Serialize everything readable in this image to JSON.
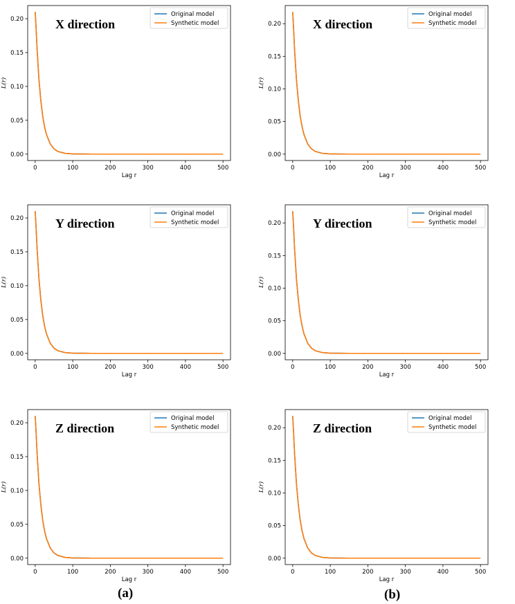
{
  "chart_data": [
    {
      "type": "line",
      "panel": "a",
      "direction_label": "X direction",
      "xlabel": "Lag r",
      "ylabel": "L(r)",
      "xlim": [
        0,
        500
      ],
      "ylim": [
        0,
        0.21
      ],
      "xticks": [
        "0",
        "100",
        "200",
        "300",
        "400",
        "500"
      ],
      "yticks": [
        "0.00",
        "0.05",
        "0.10",
        "0.15",
        "0.20"
      ],
      "grid": false,
      "legend_position": "top-right",
      "series": [
        {
          "name": "Original model",
          "color": "#1f77b4",
          "x": [
            0,
            2,
            5,
            10,
            15,
            20,
            25,
            30,
            40,
            50,
            60,
            80,
            100,
            150,
            200,
            300,
            400,
            500
          ],
          "y": [
            0.21,
            0.19,
            0.155,
            0.11,
            0.079,
            0.056,
            0.04,
            0.029,
            0.015,
            0.0078,
            0.004,
            0.0011,
            0.0003,
            0.0,
            0.0,
            0.0,
            0.0,
            0.0
          ]
        },
        {
          "name": "Synthetic model",
          "color": "#ff7f0e",
          "x": [
            0,
            2,
            5,
            10,
            15,
            20,
            25,
            30,
            40,
            50,
            60,
            80,
            100,
            150,
            200,
            300,
            400,
            500
          ],
          "y": [
            0.21,
            0.19,
            0.155,
            0.11,
            0.079,
            0.056,
            0.04,
            0.029,
            0.015,
            0.0078,
            0.004,
            0.0011,
            0.0003,
            0.0,
            0.0,
            0.0,
            0.0,
            0.0
          ]
        }
      ]
    },
    {
      "type": "line",
      "panel": "b",
      "direction_label": "X direction",
      "xlabel": "Lag r",
      "ylabel": "L(r)",
      "xlim": [
        0,
        500
      ],
      "ylim": [
        0,
        0.218
      ],
      "xticks": [
        "0",
        "100",
        "200",
        "300",
        "400",
        "500"
      ],
      "yticks": [
        "0.00",
        "0.05",
        "0.10",
        "0.15",
        "0.20"
      ],
      "grid": false,
      "legend_position": "top-right",
      "series": [
        {
          "name": "Original model",
          "color": "#1f77b4",
          "x": [
            0,
            2,
            5,
            10,
            15,
            20,
            25,
            30,
            40,
            50,
            60,
            80,
            100,
            150,
            200,
            300,
            400,
            500
          ],
          "y": [
            0.218,
            0.197,
            0.16,
            0.114,
            0.082,
            0.058,
            0.042,
            0.03,
            0.0155,
            0.008,
            0.0041,
            0.0011,
            0.0003,
            0.0,
            0.0,
            0.0,
            0.0,
            0.0
          ]
        },
        {
          "name": "Synthetic model",
          "color": "#ff7f0e",
          "x": [
            0,
            2,
            5,
            10,
            15,
            20,
            25,
            30,
            40,
            50,
            60,
            80,
            100,
            150,
            200,
            300,
            400,
            500
          ],
          "y": [
            0.218,
            0.197,
            0.16,
            0.114,
            0.082,
            0.058,
            0.042,
            0.03,
            0.0155,
            0.008,
            0.0041,
            0.0011,
            0.0003,
            0.0,
            0.0,
            0.0,
            0.0,
            0.0
          ]
        }
      ]
    },
    {
      "type": "line",
      "panel": "a",
      "direction_label": "Y direction",
      "xlabel": "Lag r",
      "ylabel": "L(r)",
      "xlim": [
        0,
        500
      ],
      "ylim": [
        0,
        0.21
      ],
      "xticks": [
        "0",
        "100",
        "200",
        "300",
        "400",
        "500"
      ],
      "yticks": [
        "0.00",
        "0.05",
        "0.10",
        "0.15",
        "0.20"
      ],
      "grid": false,
      "legend_position": "top-right",
      "series": [
        {
          "name": "Original model",
          "color": "#1f77b4",
          "x": [
            0,
            2,
            5,
            10,
            15,
            20,
            25,
            30,
            40,
            50,
            60,
            80,
            100,
            150,
            200,
            300,
            400,
            500
          ],
          "y": [
            0.21,
            0.19,
            0.155,
            0.11,
            0.079,
            0.056,
            0.04,
            0.029,
            0.015,
            0.0078,
            0.004,
            0.0011,
            0.0003,
            0.0,
            0.0,
            0.0,
            0.0,
            0.0
          ]
        },
        {
          "name": "Synthetic model",
          "color": "#ff7f0e",
          "x": [
            0,
            2,
            5,
            10,
            15,
            20,
            25,
            30,
            40,
            50,
            60,
            80,
            100,
            150,
            200,
            300,
            400,
            500
          ],
          "y": [
            0.21,
            0.19,
            0.155,
            0.11,
            0.079,
            0.056,
            0.04,
            0.029,
            0.015,
            0.0078,
            0.004,
            0.0011,
            0.0003,
            0.0,
            0.0,
            0.0,
            0.0,
            0.0
          ]
        }
      ]
    },
    {
      "type": "line",
      "panel": "b",
      "direction_label": "Y direction",
      "xlabel": "Lag r",
      "ylabel": "L(r)",
      "xlim": [
        0,
        500
      ],
      "ylim": [
        0,
        0.218
      ],
      "xticks": [
        "0",
        "100",
        "200",
        "300",
        "400",
        "500"
      ],
      "yticks": [
        "0.00",
        "0.05",
        "0.10",
        "0.15",
        "0.20"
      ],
      "grid": false,
      "legend_position": "top-right",
      "series": [
        {
          "name": "Original model",
          "color": "#1f77b4",
          "x": [
            0,
            2,
            5,
            10,
            15,
            20,
            25,
            30,
            40,
            50,
            60,
            80,
            100,
            150,
            200,
            300,
            400,
            500
          ],
          "y": [
            0.218,
            0.197,
            0.16,
            0.114,
            0.082,
            0.058,
            0.042,
            0.03,
            0.0155,
            0.008,
            0.0041,
            0.0011,
            0.0003,
            0.0,
            0.0,
            0.0,
            0.0,
            0.0
          ]
        },
        {
          "name": "Synthetic model",
          "color": "#ff7f0e",
          "x": [
            0,
            2,
            5,
            10,
            15,
            20,
            25,
            30,
            40,
            50,
            60,
            80,
            100,
            150,
            200,
            300,
            400,
            500
          ],
          "y": [
            0.218,
            0.197,
            0.16,
            0.114,
            0.082,
            0.058,
            0.042,
            0.03,
            0.0155,
            0.008,
            0.0041,
            0.0011,
            0.0003,
            0.0,
            0.0,
            0.0,
            0.0,
            0.0
          ]
        }
      ]
    },
    {
      "type": "line",
      "panel": "a",
      "direction_label": "Z direction",
      "xlabel": "Lag r",
      "ylabel": "L(r)",
      "xlim": [
        0,
        500
      ],
      "ylim": [
        0,
        0.21
      ],
      "xticks": [
        "0",
        "100",
        "200",
        "300",
        "400",
        "500"
      ],
      "yticks": [
        "0.00",
        "0.05",
        "0.10",
        "0.15",
        "0.20"
      ],
      "grid": false,
      "legend_position": "top-right",
      "series": [
        {
          "name": "Original model",
          "color": "#1f77b4",
          "x": [
            0,
            2,
            5,
            10,
            15,
            20,
            25,
            30,
            40,
            50,
            60,
            80,
            100,
            150,
            200,
            300,
            400,
            500
          ],
          "y": [
            0.21,
            0.19,
            0.155,
            0.11,
            0.079,
            0.056,
            0.04,
            0.029,
            0.015,
            0.0078,
            0.004,
            0.0011,
            0.0003,
            0.0,
            0.0,
            0.0,
            0.0,
            0.0
          ]
        },
        {
          "name": "Synthetic model",
          "color": "#ff7f0e",
          "x": [
            0,
            2,
            5,
            10,
            15,
            20,
            25,
            30,
            40,
            50,
            60,
            80,
            100,
            150,
            200,
            300,
            400,
            500
          ],
          "y": [
            0.21,
            0.19,
            0.155,
            0.11,
            0.079,
            0.056,
            0.04,
            0.029,
            0.015,
            0.0078,
            0.004,
            0.0011,
            0.0003,
            0.0,
            0.0,
            0.0,
            0.0,
            0.0
          ]
        }
      ]
    },
    {
      "type": "line",
      "panel": "b",
      "direction_label": "Z direction",
      "xlabel": "Lag r",
      "ylabel": "L(r)",
      "xlim": [
        0,
        500
      ],
      "ylim": [
        0,
        0.218
      ],
      "xticks": [
        "0",
        "100",
        "200",
        "300",
        "400",
        "500"
      ],
      "yticks": [
        "0.00",
        "0.05",
        "0.10",
        "0.15",
        "0.20"
      ],
      "grid": false,
      "legend_position": "top-right",
      "series": [
        {
          "name": "Original model",
          "color": "#1f77b4",
          "x": [
            0,
            2,
            5,
            10,
            15,
            20,
            25,
            30,
            40,
            50,
            60,
            80,
            100,
            150,
            200,
            300,
            400,
            500
          ],
          "y": [
            0.218,
            0.197,
            0.16,
            0.114,
            0.082,
            0.058,
            0.042,
            0.03,
            0.0155,
            0.008,
            0.0041,
            0.0011,
            0.0003,
            0.0,
            0.0,
            0.0,
            0.0,
            0.0
          ]
        },
        {
          "name": "Synthetic model",
          "color": "#ff7f0e",
          "x": [
            0,
            2,
            5,
            10,
            15,
            20,
            25,
            30,
            40,
            50,
            60,
            80,
            100,
            150,
            200,
            300,
            400,
            500
          ],
          "y": [
            0.218,
            0.197,
            0.16,
            0.114,
            0.082,
            0.058,
            0.042,
            0.03,
            0.0155,
            0.008,
            0.0041,
            0.0011,
            0.0003,
            0.0,
            0.0,
            0.0,
            0.0,
            0.0
          ]
        }
      ]
    }
  ],
  "captions": {
    "left": "(a)",
    "right": "(b)"
  }
}
